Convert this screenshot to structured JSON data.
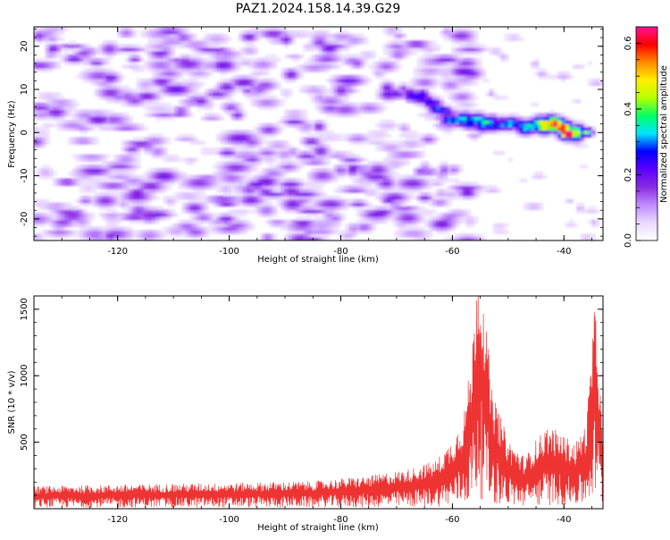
{
  "figure": {
    "title": "PAZ1.2024.158.14.39.G29"
  },
  "chart_data": [
    {
      "type": "heatmap",
      "xlabel": "Height of straight line (km)",
      "ylabel": "Frequency (Hz)",
      "colorbar_label": "Normalized spectral amplitude",
      "xlim": [
        -135,
        -33
      ],
      "ylim": [
        -25,
        24.5
      ],
      "clim": [
        0,
        0.65
      ],
      "x_ticks": [
        -120,
        -100,
        -80,
        -60,
        -40
      ],
      "y_ticks": [
        -20,
        -10,
        0,
        10,
        20
      ],
      "colorbar_ticks": [
        0.0,
        0.2,
        0.4,
        0.6
      ],
      "colormap": "gist_rainbow_r",
      "colormap_stops": [
        "#ffffff",
        "#e9d8ff",
        "#c08bff",
        "#8a2be2",
        "#5a00ff",
        "#0000ff",
        "#00e5ff",
        "#00ff66",
        "#b6ff00",
        "#ffee00",
        "#ff8c00",
        "#ff0000",
        "#ff1493"
      ],
      "features": {
        "noise_region_x": [
          -135,
          -62
        ],
        "noise_amplitude": [
          0.05,
          0.2
        ],
        "signal_ridge": [
          {
            "x": -72,
            "y": 10,
            "amp": 0.18
          },
          {
            "x": -66,
            "y": 9,
            "amp": 0.22
          },
          {
            "x": -60,
            "y": 3,
            "amp": 0.3
          },
          {
            "x": -55,
            "y": 2.5,
            "amp": 0.35
          },
          {
            "x": -50,
            "y": 1.8,
            "amp": 0.3
          },
          {
            "x": -45,
            "y": 1.5,
            "amp": 0.35
          },
          {
            "x": -42,
            "y": 2.5,
            "amp": 0.55
          },
          {
            "x": -39.5,
            "y": 0.5,
            "amp": 0.6
          },
          {
            "x": -36,
            "y": -0.5,
            "amp": 0.35
          }
        ]
      }
    },
    {
      "type": "line",
      "xlabel": "Height of straight line (km)",
      "ylabel": "SNR (10 * v/v)",
      "xlim": [
        -135,
        -33
      ],
      "ylim": [
        0,
        1600
      ],
      "x_ticks": [
        -120,
        -100,
        -80,
        -60,
        -40
      ],
      "y_ticks": [
        500,
        1000,
        1500
      ],
      "line_color": "#ee3333",
      "envelope": [
        {
          "x": -135,
          "y": 130
        },
        {
          "x": -120,
          "y": 140
        },
        {
          "x": -100,
          "y": 150
        },
        {
          "x": -85,
          "y": 160
        },
        {
          "x": -75,
          "y": 190
        },
        {
          "x": -68,
          "y": 230
        },
        {
          "x": -63,
          "y": 280
        },
        {
          "x": -60,
          "y": 400
        },
        {
          "x": -58,
          "y": 550
        },
        {
          "x": -56.5,
          "y": 900
        },
        {
          "x": -55.5,
          "y": 1500
        },
        {
          "x": -54.5,
          "y": 1300
        },
        {
          "x": -53,
          "y": 700
        },
        {
          "x": -50,
          "y": 400
        },
        {
          "x": -47,
          "y": 300
        },
        {
          "x": -45,
          "y": 400
        },
        {
          "x": -43,
          "y": 480
        },
        {
          "x": -41,
          "y": 450
        },
        {
          "x": -38,
          "y": 380
        },
        {
          "x": -36,
          "y": 500
        },
        {
          "x": -35,
          "y": 950
        },
        {
          "x": -34.3,
          "y": 1250
        },
        {
          "x": -33.5,
          "y": 700
        },
        {
          "x": -33,
          "y": 350
        }
      ]
    }
  ]
}
